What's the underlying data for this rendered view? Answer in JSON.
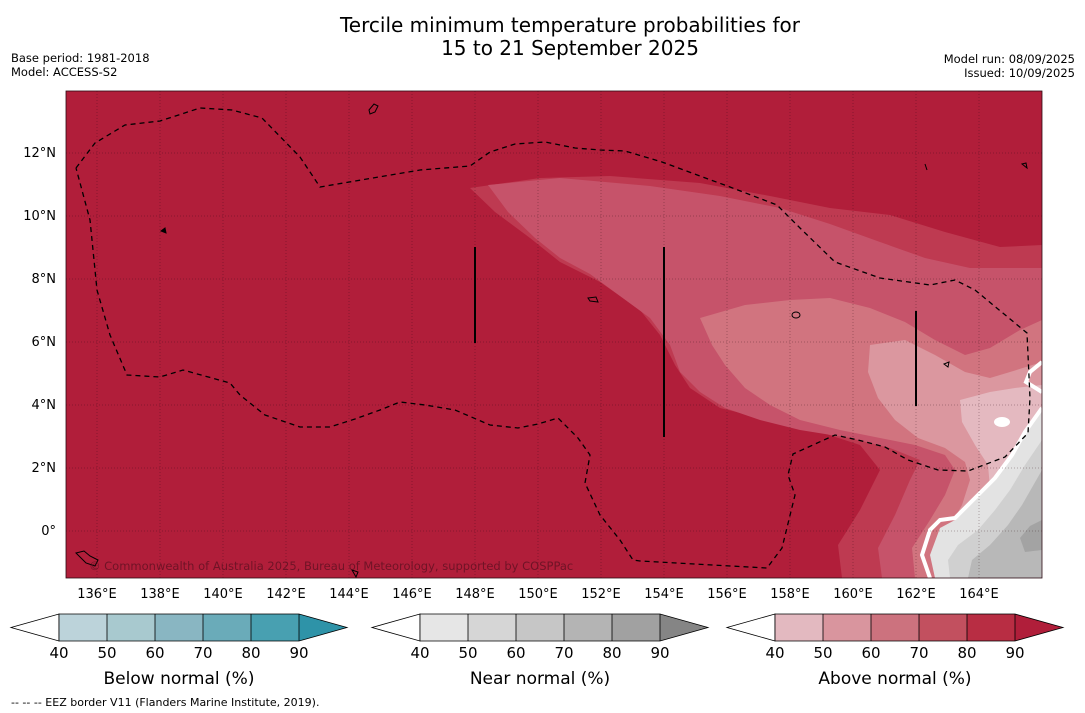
{
  "title_line1": "Tercile minimum temperature probabilities for",
  "title_line2": "15 to 21 September 2025",
  "base_period": "Base period: 1981-2018",
  "model": "Model: ACCESS-S2",
  "model_run": "Model run: 08/09/2025",
  "issued": "Issued: 10/09/2025",
  "lat_ticks": [
    "12°N",
    "10°N",
    "8°N",
    "6°N",
    "4°N",
    "2°N",
    "0°"
  ],
  "lon_ticks": [
    "136°E",
    "138°E",
    "140°E",
    "142°E",
    "144°E",
    "146°E",
    "148°E",
    "150°E",
    "152°E",
    "154°E",
    "156°E",
    "158°E",
    "160°E",
    "162°E",
    "164°E"
  ],
  "copyright": "© Commonwealth of Australia 2025, Bureau of Meteorology, supported by COSPPac",
  "colorbars": [
    {
      "label": "Below normal (%)",
      "ticks": [
        "40",
        "50",
        "60",
        "70",
        "80",
        "90"
      ],
      "colors": [
        "#bcd3da",
        "#a8c9cf",
        "#89b6c2",
        "#6aabb9",
        "#48a0b1",
        "#2e93a8"
      ]
    },
    {
      "label": "Near normal (%)",
      "ticks": [
        "40",
        "50",
        "60",
        "70",
        "80",
        "90"
      ],
      "colors": [
        "#e6e6e6",
        "#d6d6d6",
        "#c6c6c6",
        "#b4b4b4",
        "#a1a1a1",
        "#858585"
      ]
    },
    {
      "label": "Above normal (%)",
      "ticks": [
        "40",
        "50",
        "60",
        "70",
        "80",
        "90"
      ],
      "colors": [
        "#e3b9c0",
        "#d9959e",
        "#cc727e",
        "#c2505f",
        "#b82d43",
        "#b01e3a"
      ]
    }
  ],
  "footnote": "--  --  -- EEZ border V11 (Flanders Marine Institute, 2019)."
}
